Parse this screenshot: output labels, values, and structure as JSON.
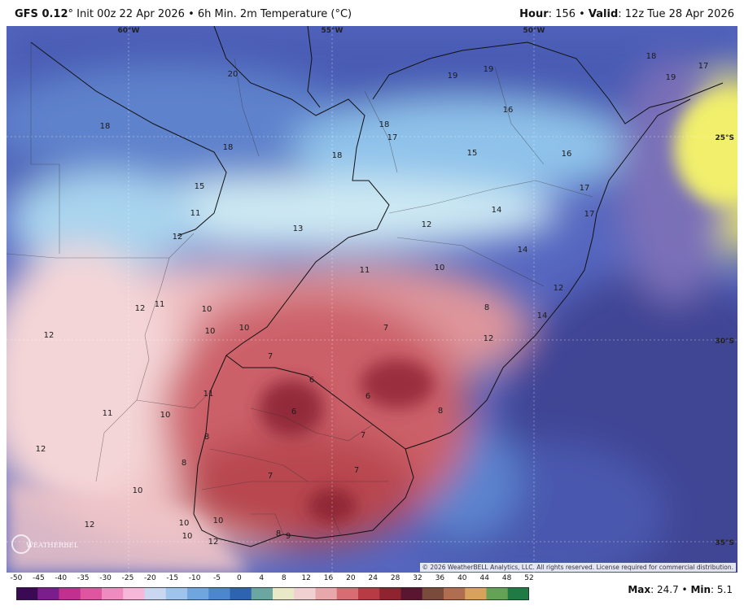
{
  "header": {
    "model": "GFS 0.12",
    "init": "° Init 00z 22 Apr 2026 • 6h Min. 2m Temperature (°C)",
    "hour_label": "Hour",
    "hour_value": ": 156 • ",
    "valid_label": "Valid",
    "valid_value": ": 12z Tue 28 Apr 2026"
  },
  "map": {
    "lon_labels": [
      "60°W",
      "55°W",
      "50°W"
    ],
    "lat_labels": [
      "25°S",
      "30°S",
      "35°S"
    ],
    "temp_labels": [
      "20",
      "18",
      "18",
      "15",
      "11",
      "12",
      "12",
      "18",
      "18",
      "17",
      "15",
      "16",
      "19",
      "19",
      "18",
      "17",
      "19",
      "16",
      "13",
      "12",
      "14",
      "14",
      "17",
      "17",
      "12",
      "11",
      "10",
      "8",
      "14",
      "12",
      "11",
      "10",
      "10",
      "12",
      "10",
      "7",
      "6",
      "6",
      "6",
      "8",
      "11",
      "11",
      "10",
      "7",
      "7",
      "12",
      "8",
      "8",
      "7",
      "7",
      "10",
      "10",
      "10",
      "10",
      "12",
      "9",
      "8",
      "12"
    ],
    "colors": {
      "cold_deep": "#3d3f8f",
      "cold": "#5468c0",
      "cool": "#7fb3e8",
      "mild": "#cfeaf2",
      "pink": "#efc1c3",
      "warm": "#cf6870",
      "red": "#a7343f",
      "hot": "#e8e65a"
    }
  },
  "credits": {
    "copyright": "© 2026 WeatherBELL Analytics, LLC. All rights reserved. License required for commercial distribution.",
    "logo_text": "WEATHERBELL"
  },
  "legend": {
    "ticks": [
      "-50",
      "-45",
      "-40",
      "-35",
      "-30",
      "-25",
      "-20",
      "-15",
      "-10",
      "-5",
      "0",
      "4",
      "8",
      "12",
      "16",
      "20",
      "24",
      "28",
      "32",
      "36",
      "40",
      "44",
      "48",
      "52"
    ],
    "stops": [
      "#3a0a55",
      "#7b1d8c",
      "#c2308f",
      "#e0559f",
      "#f08bc0",
      "#f6b7d8",
      "#c9d7f0",
      "#9ec3ec",
      "#6fa6e0",
      "#4b86cf",
      "#2e63b2",
      "#6aa7a0",
      "#e9e9c8",
      "#f0d0d0",
      "#e8a7aa",
      "#d86c73",
      "#b73a45",
      "#8f2330",
      "#5a1630",
      "#7a4a3a",
      "#b06d4f",
      "#d9a25a",
      "#64a255",
      "#1f7a43"
    ]
  },
  "stats": {
    "max_label": "Max",
    "max_value": ": 24.7 • ",
    "min_label": "Min",
    "min_value": ": 5.1"
  }
}
